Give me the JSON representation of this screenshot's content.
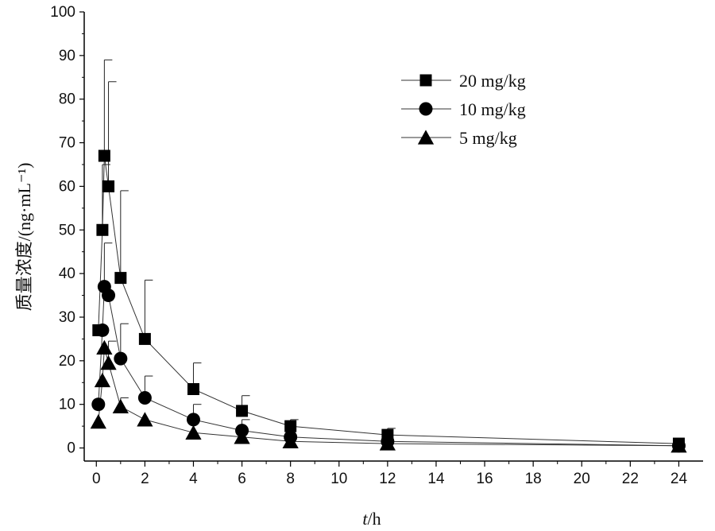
{
  "chart_data": {
    "type": "line",
    "title": "",
    "xlabel_var": "t",
    "xlabel_unit": "/h",
    "ylabel": "质量浓度/(ng·mL⁻¹)",
    "xlim": [
      -0.5,
      25
    ],
    "ylim": [
      -3,
      100
    ],
    "xticks": [
      0,
      2,
      4,
      6,
      8,
      10,
      12,
      14,
      16,
      18,
      20,
      22,
      24
    ],
    "yticks": [
      0,
      10,
      20,
      30,
      40,
      50,
      60,
      70,
      80,
      90,
      100
    ],
    "grid": false,
    "legend_position": "top-right",
    "series": [
      {
        "name": "20 mg/kg",
        "marker": "square",
        "x": [
          0.083,
          0.25,
          0.33,
          0.5,
          1,
          2,
          4,
          6,
          8,
          12,
          24
        ],
        "y": [
          27,
          50,
          67,
          60,
          39,
          25,
          13.5,
          8.5,
          5,
          3,
          1
        ],
        "err": [
          0,
          15,
          22,
          24,
          20,
          13.5,
          6,
          3.5,
          1.5,
          1.5,
          0
        ]
      },
      {
        "name": "10 mg/kg",
        "marker": "circle",
        "x": [
          0.083,
          0.25,
          0.33,
          0.5,
          1,
          2,
          4,
          6,
          8,
          12,
          24
        ],
        "y": [
          10,
          27,
          37,
          35,
          20.5,
          11.5,
          6.5,
          4,
          2.5,
          1.5,
          0.5
        ],
        "err": [
          0,
          0,
          10,
          0,
          8,
          5,
          3.5,
          2.5,
          0,
          0,
          0
        ]
      },
      {
        "name": "5 mg/kg",
        "marker": "triangle",
        "x": [
          0.083,
          0.25,
          0.33,
          0.5,
          1,
          2,
          4,
          6,
          8,
          12,
          24
        ],
        "y": [
          6,
          15.5,
          23,
          19.5,
          9.5,
          6.5,
          3.5,
          2.5,
          1.5,
          1,
          0.5
        ],
        "err": [
          0,
          0,
          0,
          5,
          2,
          0,
          0,
          0,
          0,
          0,
          0
        ]
      }
    ]
  }
}
